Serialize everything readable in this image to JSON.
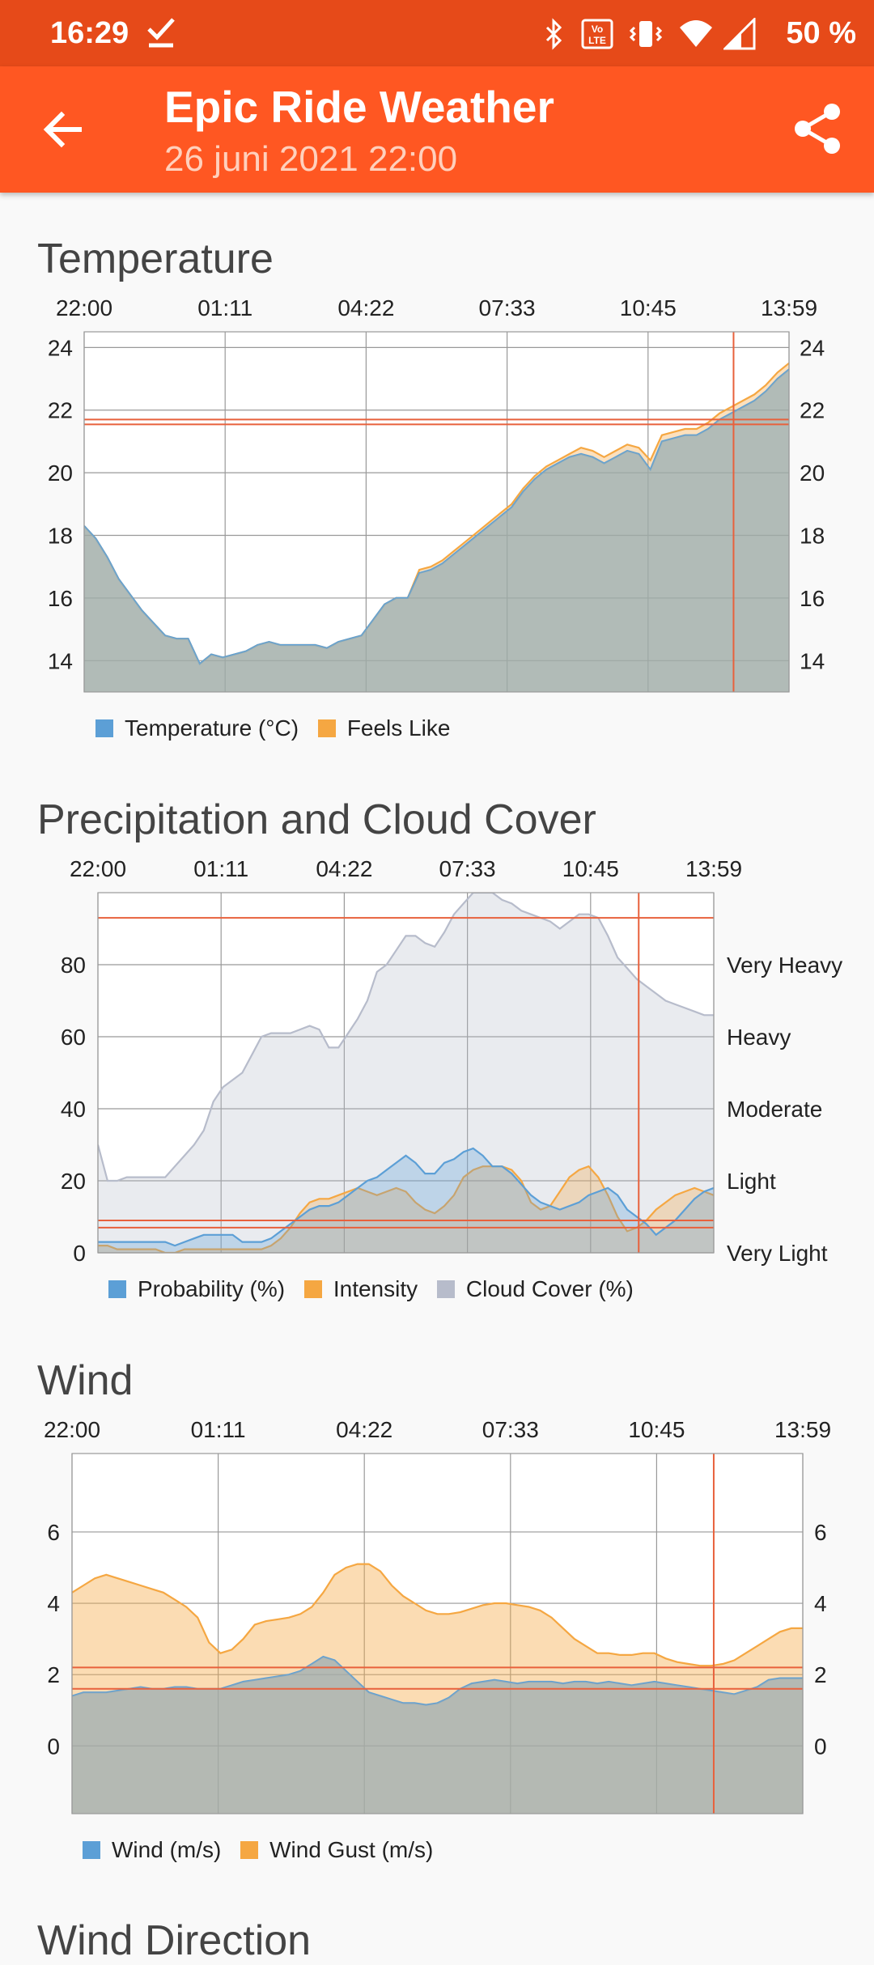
{
  "status_bar": {
    "time": "16:29",
    "battery": "50 %",
    "icons": [
      "check-icon",
      "bluetooth-icon",
      "volte-icon",
      "vibrate-icon",
      "wifi-icon",
      "signal-icon"
    ]
  },
  "app_bar": {
    "title": "Epic Ride Weather",
    "subtitle": "26 juni 2021 22:00",
    "back_icon": "back-arrow-icon",
    "share_icon": "share-icon",
    "color": "#ff5722",
    "status_color": "#e64a19"
  },
  "colors": {
    "blue": "#5c9fd6",
    "orange": "#f5a742",
    "gray": "#b7bccb",
    "marker": "#e8613c",
    "grid": "#8a8a8a"
  },
  "chart_data": [
    {
      "title": "Temperature",
      "type": "area",
      "x_ticks": [
        "22:00",
        "01:11",
        "04:22",
        "07:33",
        "10:45",
        "13:59"
      ],
      "ylim": [
        13,
        24.5
      ],
      "yticks": [
        24,
        22,
        20,
        18,
        16,
        14
      ],
      "right_yticks": [
        "24",
        "22",
        "20",
        "18",
        "16",
        "14"
      ],
      "x": [
        0,
        0.25,
        0.5,
        0.75,
        1,
        1.25,
        1.5,
        1.75,
        2,
        2.25,
        2.5,
        2.75,
        3,
        3.25,
        3.5,
        3.75,
        4,
        4.25,
        4.5,
        4.75,
        5,
        5.25,
        5.5,
        5.75,
        6,
        6.25,
        6.5,
        6.75,
        7,
        7.25,
        7.5,
        7.75,
        8,
        8.25,
        8.5,
        8.75,
        9,
        9.25,
        9.5,
        9.75,
        10,
        10.25,
        10.5,
        10.75,
        11,
        11.25,
        11.5,
        11.75,
        12,
        12.25,
        12.5,
        12.75,
        13,
        13.25,
        13.5,
        13.75,
        14,
        14.25,
        14.5,
        14.75,
        15,
        15.25
      ],
      "series": [
        {
          "name": "Temperature (°C)",
          "color": "#5c9fd6",
          "values": [
            18.3,
            17.9,
            17.3,
            16.6,
            16.1,
            15.6,
            15.2,
            14.8,
            14.7,
            14.7,
            13.9,
            14.2,
            14.1,
            14.2,
            14.3,
            14.5,
            14.6,
            14.5,
            14.5,
            14.5,
            14.5,
            14.4,
            14.6,
            14.7,
            14.8,
            15.3,
            15.8,
            16.0,
            16.0,
            16.8,
            16.9,
            17.1,
            17.4,
            17.7,
            18.0,
            18.3,
            18.6,
            18.9,
            19.4,
            19.8,
            20.1,
            20.3,
            20.5,
            20.6,
            20.5,
            20.3,
            20.5,
            20.7,
            20.6,
            20.1,
            21.0,
            21.1,
            21.2,
            21.2,
            21.4,
            21.7,
            21.9,
            22.1,
            22.3,
            22.6,
            23.0,
            23.3
          ]
        },
        {
          "name": "Feels Like",
          "color": "#f5a742",
          "values": [
            18.3,
            17.9,
            17.3,
            16.6,
            16.1,
            15.6,
            15.2,
            14.8,
            14.7,
            14.7,
            13.9,
            14.2,
            14.1,
            14.2,
            14.3,
            14.5,
            14.6,
            14.5,
            14.5,
            14.5,
            14.5,
            14.4,
            14.6,
            14.7,
            14.8,
            15.3,
            15.8,
            16.0,
            16.0,
            16.9,
            17.0,
            17.2,
            17.5,
            17.8,
            18.1,
            18.4,
            18.7,
            19.0,
            19.5,
            19.9,
            20.2,
            20.4,
            20.6,
            20.8,
            20.7,
            20.5,
            20.7,
            20.9,
            20.8,
            20.4,
            21.2,
            21.3,
            21.4,
            21.4,
            21.6,
            21.9,
            22.1,
            22.3,
            22.5,
            22.8,
            23.2,
            23.5
          ]
        }
      ],
      "marker": {
        "x": 14.05,
        "y": 21.7
      },
      "legend": [
        "Temperature (°C)",
        "Feels Like"
      ]
    },
    {
      "title": "Precipitation and Cloud Cover",
      "type": "area",
      "x_ticks": [
        "22:00",
        "01:11",
        "04:22",
        "07:33",
        "10:45",
        "13:59"
      ],
      "ylim": [
        0,
        100
      ],
      "yticks": [
        80,
        60,
        40,
        20,
        0
      ],
      "right_yticks": [
        "Very Heavy",
        "Heavy",
        "Moderate",
        "Light",
        "Very Light"
      ],
      "x": [
        0,
        0.25,
        0.5,
        0.75,
        1,
        1.25,
        1.5,
        1.75,
        2,
        2.25,
        2.5,
        2.75,
        3,
        3.25,
        3.5,
        3.75,
        4,
        4.25,
        4.5,
        4.75,
        5,
        5.25,
        5.5,
        5.75,
        6,
        6.25,
        6.5,
        6.75,
        7,
        7.25,
        7.5,
        7.75,
        8,
        8.25,
        8.5,
        8.75,
        9,
        9.25,
        9.5,
        9.75,
        10,
        10.25,
        10.5,
        10.75,
        11,
        11.25,
        11.5,
        11.75,
        12,
        12.25,
        12.5,
        12.75,
        13,
        13.25,
        13.5,
        13.75,
        14,
        14.25,
        14.5,
        14.75,
        15,
        15.25,
        15.5,
        15.75,
        16
      ],
      "series": [
        {
          "name": "Probability (%)",
          "color": "#5c9fd6",
          "values": [
            3,
            3,
            3,
            3,
            3,
            3,
            3,
            3,
            2,
            3,
            4,
            5,
            5,
            5,
            5,
            3,
            3,
            3,
            4,
            6,
            8,
            10,
            12,
            13,
            13,
            14,
            16,
            18,
            20,
            21,
            23,
            25,
            27,
            25,
            22,
            22,
            25,
            26,
            28,
            29,
            27,
            24,
            24,
            22,
            19,
            16,
            14,
            13,
            12,
            13,
            14,
            16,
            17,
            18,
            16,
            12,
            10,
            8,
            5,
            7,
            9,
            12,
            15,
            17,
            18
          ]
        },
        {
          "name": "Intensity",
          "color": "#f5a742",
          "values": [
            2,
            2,
            1,
            1,
            1,
            1,
            1,
            0,
            0,
            1,
            1,
            1,
            1,
            1,
            1,
            1,
            1,
            1,
            2,
            4,
            7,
            11,
            14,
            15,
            15,
            16,
            17,
            18,
            17,
            16,
            17,
            18,
            17,
            14,
            12,
            11,
            13,
            16,
            21,
            23,
            24,
            24,
            24,
            23,
            20,
            14,
            12,
            13,
            17,
            21,
            23,
            24,
            21,
            16,
            10,
            6,
            7,
            9,
            12,
            14,
            16,
            17,
            18,
            17,
            16
          ]
        },
        {
          "name": "Cloud Cover (%)",
          "color": "#b7bccb",
          "values": [
            30,
            20,
            20,
            21,
            21,
            21,
            21,
            21,
            24,
            27,
            30,
            34,
            42,
            46,
            48,
            50,
            55,
            60,
            61,
            61,
            61,
            62,
            63,
            62,
            57,
            57,
            61,
            65,
            70,
            78,
            80,
            84,
            88,
            88,
            86,
            85,
            89,
            94,
            97,
            100,
            100,
            100,
            98,
            97,
            95,
            94,
            93,
            92,
            90,
            92,
            94,
            94,
            93,
            88,
            82,
            79,
            76,
            74,
            72,
            70,
            69,
            68,
            67,
            66,
            66
          ]
        }
      ],
      "marker": {
        "x": 14.05,
        "y": 93
      },
      "baselines": [
        9,
        7
      ],
      "legend": [
        "Probability (%)",
        "Intensity",
        "Cloud Cover (%)"
      ]
    },
    {
      "title": "Wind",
      "type": "area",
      "x_ticks": [
        "22:00",
        "01:11",
        "04:22",
        "07:33",
        "10:45",
        "13:59"
      ],
      "ylim": [
        -1.9,
        8.2
      ],
      "yticks": [
        6,
        4,
        2,
        0
      ],
      "right_yticks": [
        "6",
        "4",
        "2",
        "0"
      ],
      "x": [
        0,
        0.25,
        0.5,
        0.75,
        1,
        1.25,
        1.5,
        1.75,
        2,
        2.25,
        2.5,
        2.75,
        3,
        3.25,
        3.5,
        3.75,
        4,
        4.25,
        4.5,
        4.75,
        5,
        5.25,
        5.5,
        5.75,
        6,
        6.25,
        6.5,
        6.75,
        7,
        7.25,
        7.5,
        7.75,
        8,
        8.25,
        8.5,
        8.75,
        9,
        9.25,
        9.5,
        9.75,
        10,
        10.25,
        10.5,
        10.75,
        11,
        11.25,
        11.5,
        11.75,
        12,
        12.25,
        12.5,
        12.75,
        13,
        13.25,
        13.5,
        13.75,
        14,
        14.25,
        14.5,
        14.75,
        15,
        15.25,
        15.5,
        15.75,
        16
      ],
      "series": [
        {
          "name": "Wind (m/s)",
          "color": "#5c9fd6",
          "values": [
            1.4,
            1.5,
            1.5,
            1.5,
            1.55,
            1.6,
            1.65,
            1.6,
            1.6,
            1.65,
            1.65,
            1.6,
            1.6,
            1.6,
            1.7,
            1.8,
            1.85,
            1.9,
            1.95,
            2.0,
            2.1,
            2.3,
            2.5,
            2.4,
            2.1,
            1.8,
            1.5,
            1.4,
            1.3,
            1.2,
            1.2,
            1.15,
            1.2,
            1.35,
            1.6,
            1.75,
            1.8,
            1.85,
            1.8,
            1.75,
            1.8,
            1.8,
            1.8,
            1.75,
            1.8,
            1.8,
            1.75,
            1.8,
            1.75,
            1.7,
            1.75,
            1.8,
            1.75,
            1.7,
            1.65,
            1.6,
            1.55,
            1.5,
            1.45,
            1.55,
            1.65,
            1.85,
            1.9,
            1.9,
            1.9
          ]
        },
        {
          "name": "Wind Gust (m/s)",
          "color": "#f5a742",
          "values": [
            4.3,
            4.5,
            4.7,
            4.8,
            4.7,
            4.6,
            4.5,
            4.4,
            4.3,
            4.1,
            3.9,
            3.6,
            2.9,
            2.6,
            2.7,
            3.0,
            3.4,
            3.5,
            3.55,
            3.6,
            3.7,
            3.9,
            4.3,
            4.8,
            5.0,
            5.1,
            5.1,
            4.9,
            4.5,
            4.2,
            4.0,
            3.8,
            3.7,
            3.7,
            3.75,
            3.85,
            3.95,
            4.0,
            4.0,
            3.95,
            3.9,
            3.8,
            3.6,
            3.3,
            3.0,
            2.8,
            2.6,
            2.6,
            2.55,
            2.55,
            2.6,
            2.6,
            2.45,
            2.35,
            2.3,
            2.25,
            2.25,
            2.3,
            2.4,
            2.6,
            2.8,
            3.0,
            3.2,
            3.3,
            3.3
          ]
        }
      ],
      "marker": {
        "x": 14.05,
        "y": 2.2
      },
      "baselines": [
        1.6
      ],
      "legend": [
        "Wind (m/s)",
        "Wind Gust (m/s)"
      ]
    }
  ],
  "next_section_title": "Wind Direction"
}
